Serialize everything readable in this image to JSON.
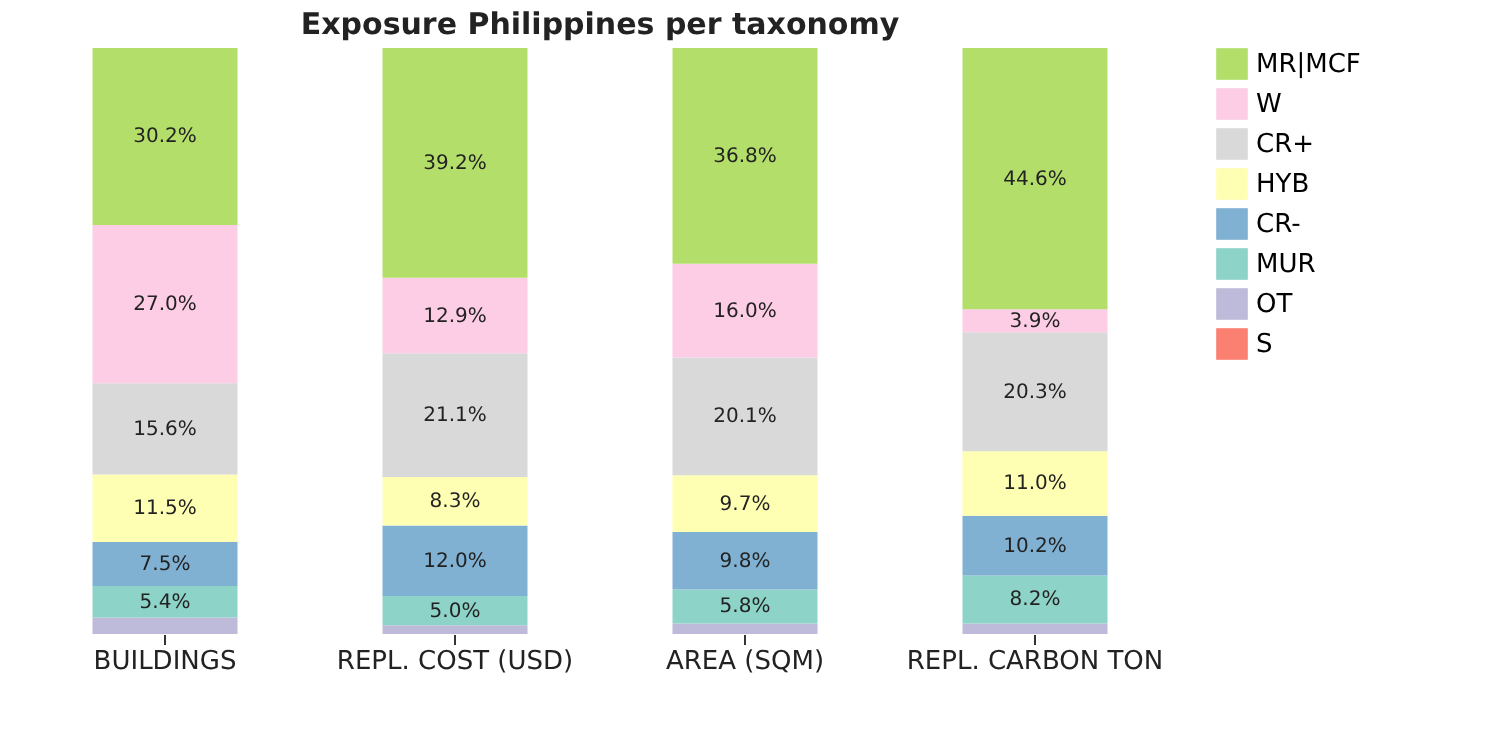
{
  "chart_data": {
    "type": "bar",
    "title": "Exposure Philippines per taxonomy",
    "categories": [
      "BUILDINGS",
      "REPL. COST (USD)",
      "AREA (SQM)",
      "REPL. CARBON TON"
    ],
    "stacked": true,
    "ylim": [
      0,
      100
    ],
    "tick_labels": "x",
    "grid": false,
    "legend": "top right",
    "series": [
      {
        "name": "S",
        "color": "#fb8072",
        "values": [
          0,
          0,
          0,
          0
        ],
        "value_labels": [
          null,
          null,
          null,
          null
        ]
      },
      {
        "name": "OT",
        "color": "#bebada",
        "values": [
          2.8,
          1.5,
          1.8,
          1.8
        ],
        "value_labels": [
          null,
          null,
          null,
          null
        ]
      },
      {
        "name": "MUR",
        "color": "#8dd3c7",
        "values": [
          5.4,
          5.0,
          5.8,
          8.2
        ],
        "value_labels": [
          "5.4%",
          "5.0%",
          "5.8%",
          "8.2%"
        ]
      },
      {
        "name": "CR-",
        "color": "#80b1d3",
        "values": [
          7.5,
          12.0,
          9.8,
          10.2
        ],
        "value_labels": [
          "7.5%",
          "12.0%",
          "9.8%",
          "10.2%"
        ]
      },
      {
        "name": "HYB",
        "color": "#ffffb3",
        "values": [
          11.5,
          8.3,
          9.7,
          11.0
        ],
        "value_labels": [
          "11.5%",
          "8.3%",
          "9.7%",
          "11.0%"
        ]
      },
      {
        "name": "CR+",
        "color": "#d9d9d9",
        "values": [
          15.6,
          21.1,
          20.1,
          20.3
        ],
        "value_labels": [
          "15.6%",
          "21.1%",
          "20.1%",
          "20.3%"
        ]
      },
      {
        "name": "W",
        "color": "#fccde5",
        "values": [
          27.0,
          12.9,
          16.0,
          3.9
        ],
        "value_labels": [
          "27.0%",
          "12.9%",
          "16.0%",
          "3.9%"
        ]
      },
      {
        "name": "MR|MCF",
        "color": "#b3de69",
        "values": [
          30.2,
          39.2,
          36.8,
          44.6
        ],
        "value_labels": [
          "30.2%",
          "39.2%",
          "36.8%",
          "44.6%"
        ]
      }
    ]
  }
}
